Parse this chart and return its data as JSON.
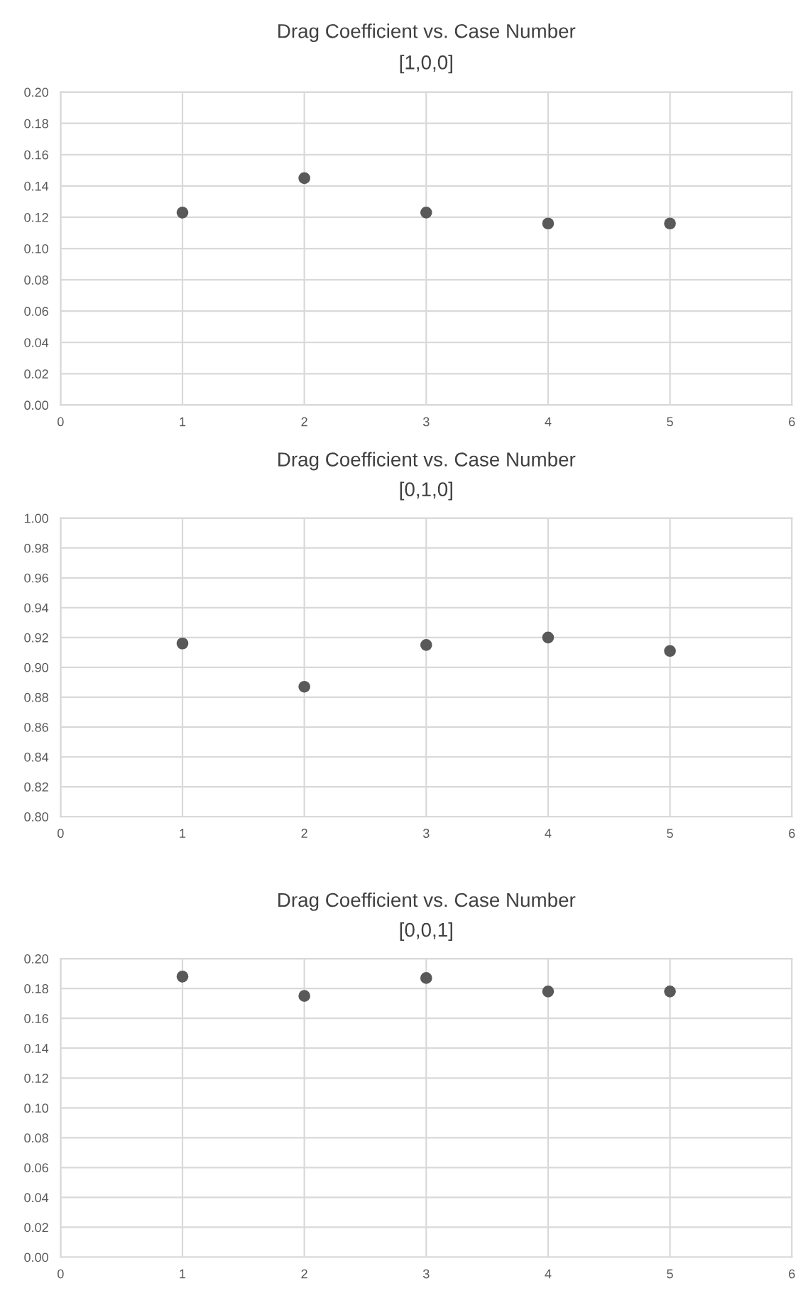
{
  "chart_data": [
    {
      "type": "scatter",
      "title": "Drag Coefficient vs. Case Number",
      "subtitle": "[1,0,0]",
      "x": [
        1,
        2,
        3,
        4,
        5
      ],
      "series": [
        {
          "color": "#595959",
          "values": [
            0.123,
            0.145,
            0.123,
            0.116,
            0.116
          ]
        }
      ],
      "xlim": [
        0,
        6
      ],
      "xticks": [
        0,
        1,
        2,
        3,
        4,
        5,
        6
      ],
      "ylim": [
        0,
        0.2
      ],
      "yticks": [
        {
          "value": 0,
          "label": "0.00"
        },
        {
          "value": 0.02,
          "label": "0.02"
        },
        {
          "value": 0.04,
          "label": "0.04"
        },
        {
          "value": 0.06,
          "label": "0.06"
        },
        {
          "value": 0.08,
          "label": "0.08"
        },
        {
          "value": 0.1,
          "label": "0.10"
        },
        {
          "value": 0.12,
          "label": "0.12"
        },
        {
          "value": 0.14,
          "label": "0.14"
        },
        {
          "value": 0.16,
          "label": "0.16"
        },
        {
          "value": 0.18,
          "label": "0.18"
        },
        {
          "value": 0.2,
          "label": "0.20"
        }
      ],
      "grid": true,
      "marker": "circle",
      "legend": false
    },
    {
      "type": "scatter",
      "title": "Drag Coefficient vs. Case Number",
      "subtitle": "[0,1,0]",
      "x": [
        1,
        2,
        3,
        4,
        5
      ],
      "series": [
        {
          "color": "#595959",
          "values": [
            0.916,
            0.887,
            0.915,
            0.92,
            0.911
          ]
        }
      ],
      "xlim": [
        0,
        6
      ],
      "xticks": [
        0,
        1,
        2,
        3,
        4,
        5,
        6
      ],
      "ylim": [
        0.8,
        1.0
      ],
      "yticks": [
        {
          "value": 0.8,
          "label": "0.80"
        },
        {
          "value": 0.82,
          "label": "0.82"
        },
        {
          "value": 0.84,
          "label": "0.84"
        },
        {
          "value": 0.86,
          "label": "0.86"
        },
        {
          "value": 0.88,
          "label": "0.88"
        },
        {
          "value": 0.9,
          "label": "0.90"
        },
        {
          "value": 0.92,
          "label": "0.92"
        },
        {
          "value": 0.94,
          "label": "0.94"
        },
        {
          "value": 0.96,
          "label": "0.96"
        },
        {
          "value": 0.98,
          "label": "0.98"
        },
        {
          "value": 1.0,
          "label": "1.00"
        }
      ],
      "grid": true,
      "marker": "circle",
      "legend": false
    },
    {
      "type": "scatter",
      "title": "Drag Coefficient vs. Case Number",
      "subtitle": "[0,0,1]",
      "x": [
        1,
        2,
        3,
        4,
        5
      ],
      "series": [
        {
          "color": "#595959",
          "values": [
            0.188,
            0.175,
            0.187,
            0.178,
            0.178
          ]
        }
      ],
      "xlim": [
        0,
        6
      ],
      "xticks": [
        0,
        1,
        2,
        3,
        4,
        5,
        6
      ],
      "ylim": [
        0,
        0.2
      ],
      "yticks": [
        {
          "value": 0,
          "label": "0.00"
        },
        {
          "value": 0.02,
          "label": "0.02"
        },
        {
          "value": 0.04,
          "label": "0.04"
        },
        {
          "value": 0.06,
          "label": "0.06"
        },
        {
          "value": 0.08,
          "label": "0.08"
        },
        {
          "value": 0.1,
          "label": "0.10"
        },
        {
          "value": 0.12,
          "label": "0.12"
        },
        {
          "value": 0.14,
          "label": "0.14"
        },
        {
          "value": 0.16,
          "label": "0.16"
        },
        {
          "value": 0.18,
          "label": "0.18"
        },
        {
          "value": 0.2,
          "label": "0.20"
        }
      ],
      "grid": true,
      "marker": "circle",
      "legend": false
    }
  ]
}
